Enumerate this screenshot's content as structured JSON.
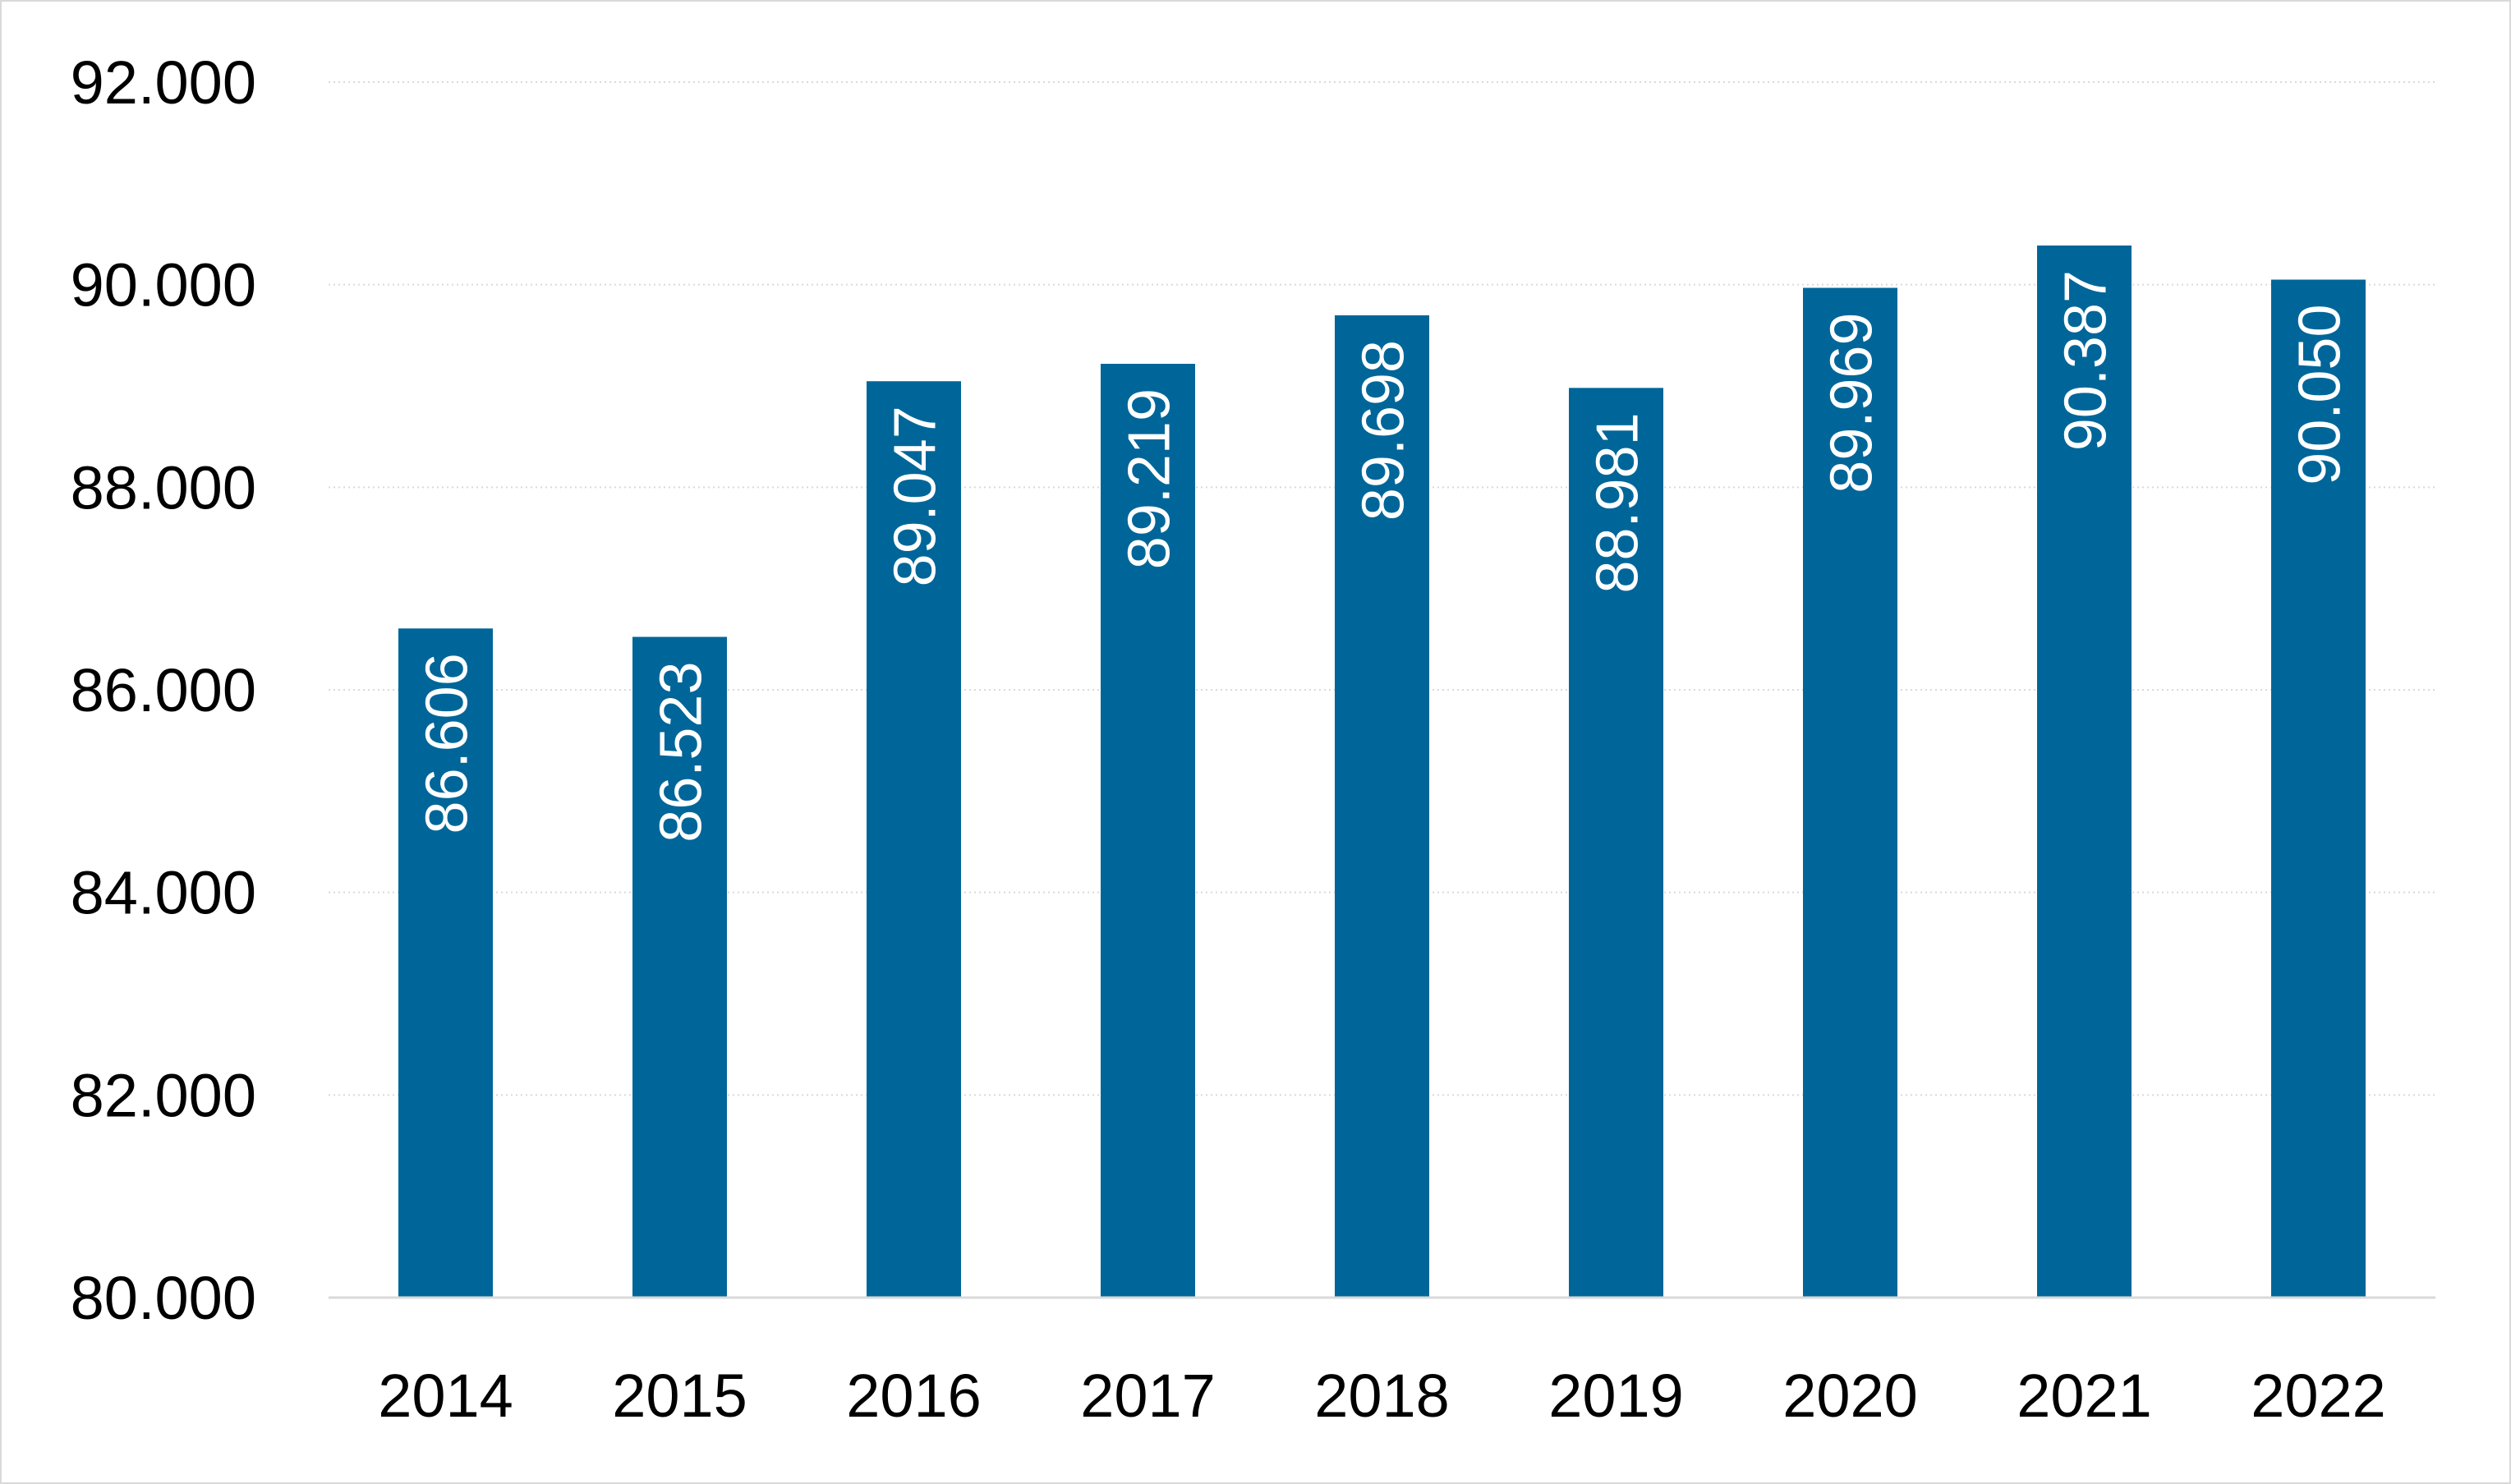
{
  "chart_data": {
    "type": "bar",
    "categories": [
      "2014",
      "2015",
      "2016",
      "2017",
      "2018",
      "2019",
      "2020",
      "2021",
      "2022"
    ],
    "values": [
      86606,
      86523,
      89047,
      89219,
      89698,
      88981,
      89969,
      90387,
      90050
    ],
    "value_labels": [
      "86.606",
      "86.523",
      "89.047",
      "89.219",
      "89.698",
      "88.981",
      "89.969",
      "90.387",
      "90.050"
    ],
    "ylim": [
      80000,
      92000
    ],
    "yticks": [
      80000,
      82000,
      84000,
      86000,
      88000,
      90000,
      92000
    ],
    "ytick_labels": [
      "80.000",
      "82.000",
      "84.000",
      "86.000",
      "88.000",
      "90.000",
      "92.000"
    ],
    "title": "",
    "xlabel": "",
    "ylabel": "",
    "grid": true,
    "legend": "none",
    "bar_color": "#006699",
    "label_color": "#ffffff",
    "data_label_orientation": "vertical"
  }
}
